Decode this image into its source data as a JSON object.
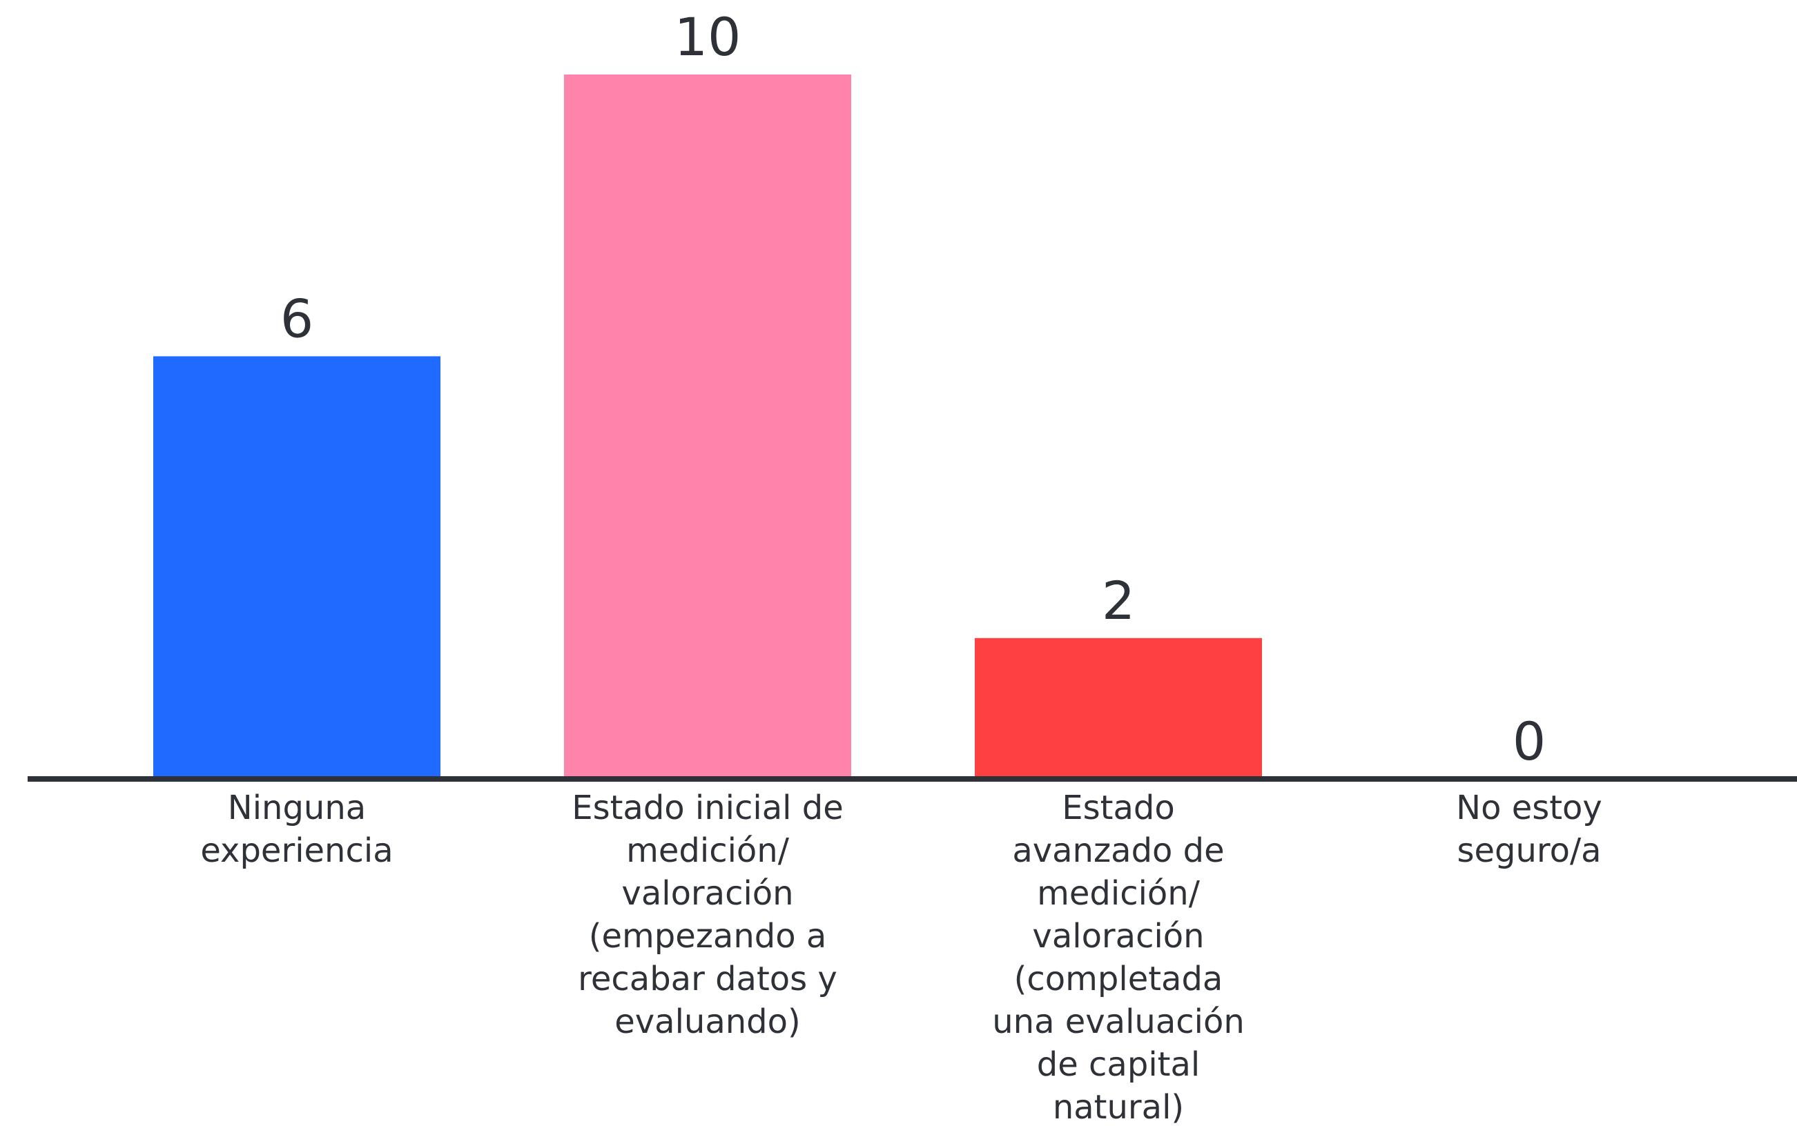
{
  "chart_data": {
    "type": "bar",
    "title": "",
    "xlabel": "",
    "ylabel": "",
    "ylim": [
      0,
      10
    ],
    "grid": false,
    "legend": "none",
    "categories": [
      "Ninguna experiencia",
      "Estado inicial de medición/ valoración (empezando a recabar datos y evaluando)",
      "Estado avanzado de medición/ valoración (completada una evaluación de capital natural)",
      "No estoy seguro/a"
    ],
    "category_lines": [
      [
        "Ninguna",
        "experiencia"
      ],
      [
        "Estado inicial de",
        "medición/",
        "valoración",
        "(empezando a",
        "recabar datos y",
        "evaluando)"
      ],
      [
        "Estado",
        "avanzado de",
        "medición/",
        "valoración",
        "(completada",
        "una evaluación",
        "de capital",
        "natural)"
      ],
      [
        "No estoy",
        "seguro/a"
      ]
    ],
    "values": [
      6,
      10,
      2,
      0
    ],
    "value_labels": [
      "6",
      "10",
      "2",
      "0"
    ],
    "colors": [
      "#1f6bff",
      "#ff84ab",
      "#ff4040",
      "#1f6bff"
    ],
    "axis_color": "#2f3138",
    "text_color": "#2f3138"
  }
}
